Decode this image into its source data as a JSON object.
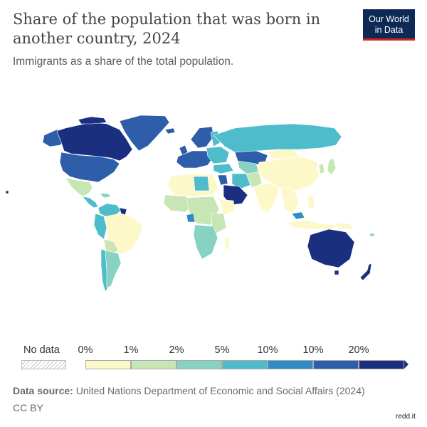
{
  "header": {
    "title": "Share of the population that was born in another country, 2024",
    "subtitle": "Immigrants as a share of the total population."
  },
  "logo": {
    "line1": "Our World",
    "line2": "in Data"
  },
  "legend": {
    "no_data_label": "No data",
    "ticks": [
      "0%",
      "1%",
      "2%",
      "5%",
      "10%",
      "10%",
      "20%"
    ],
    "bin_colors": [
      "#fdf8c8",
      "#c8e6b4",
      "#87d2c2",
      "#4fbccb",
      "#2f8cc4",
      "#2e5daa",
      "#1a2f80"
    ]
  },
  "footer": {
    "source_label": "Data source:",
    "source_text": "United Nations Department of Economic and Social Affairs (2024)",
    "license": "CC BY"
  },
  "watermark": "redd.it",
  "chart_data": {
    "type": "choropleth",
    "metric": "Immigrants as a share of the total population",
    "year": 2024,
    "unit": "%",
    "legend_bins": [
      "0%",
      "1%",
      "2%",
      "5%",
      "10%",
      "10%",
      "20%"
    ],
    "regions": [
      {
        "region": "Canada",
        "bin": "20%+"
      },
      {
        "region": "Greenland",
        "bin": "10–20%"
      },
      {
        "region": "United States",
        "bin": "10–20%"
      },
      {
        "region": "Mexico",
        "bin": "0–1%"
      },
      {
        "region": "Central America",
        "bin": "1–5%"
      },
      {
        "region": "Colombia / Venezuela / Ecuador",
        "bin": "2–10%"
      },
      {
        "region": "Brazil",
        "bin": "0–1%"
      },
      {
        "region": "Argentina",
        "bin": "2–5%"
      },
      {
        "region": "Chile",
        "bin": "5–10%"
      },
      {
        "region": "Western Europe",
        "bin": "10–20%"
      },
      {
        "region": "Eastern Europe",
        "bin": "5–10%"
      },
      {
        "region": "Russia",
        "bin": "5–10%"
      },
      {
        "region": "Kazakhstan",
        "bin": "10–20%"
      },
      {
        "region": "Gulf states",
        "bin": "20%+"
      },
      {
        "region": "North Africa",
        "bin": "0–1%"
      },
      {
        "region": "Sub-Saharan Africa",
        "bin": "1–5%"
      },
      {
        "region": "China",
        "bin": "0–1%"
      },
      {
        "region": "India",
        "bin": "0–1%"
      },
      {
        "region": "Southeast Asia",
        "bin": "0–2%"
      },
      {
        "region": "Australia",
        "bin": "20%+"
      },
      {
        "region": "New Zealand",
        "bin": "20%+"
      }
    ]
  }
}
